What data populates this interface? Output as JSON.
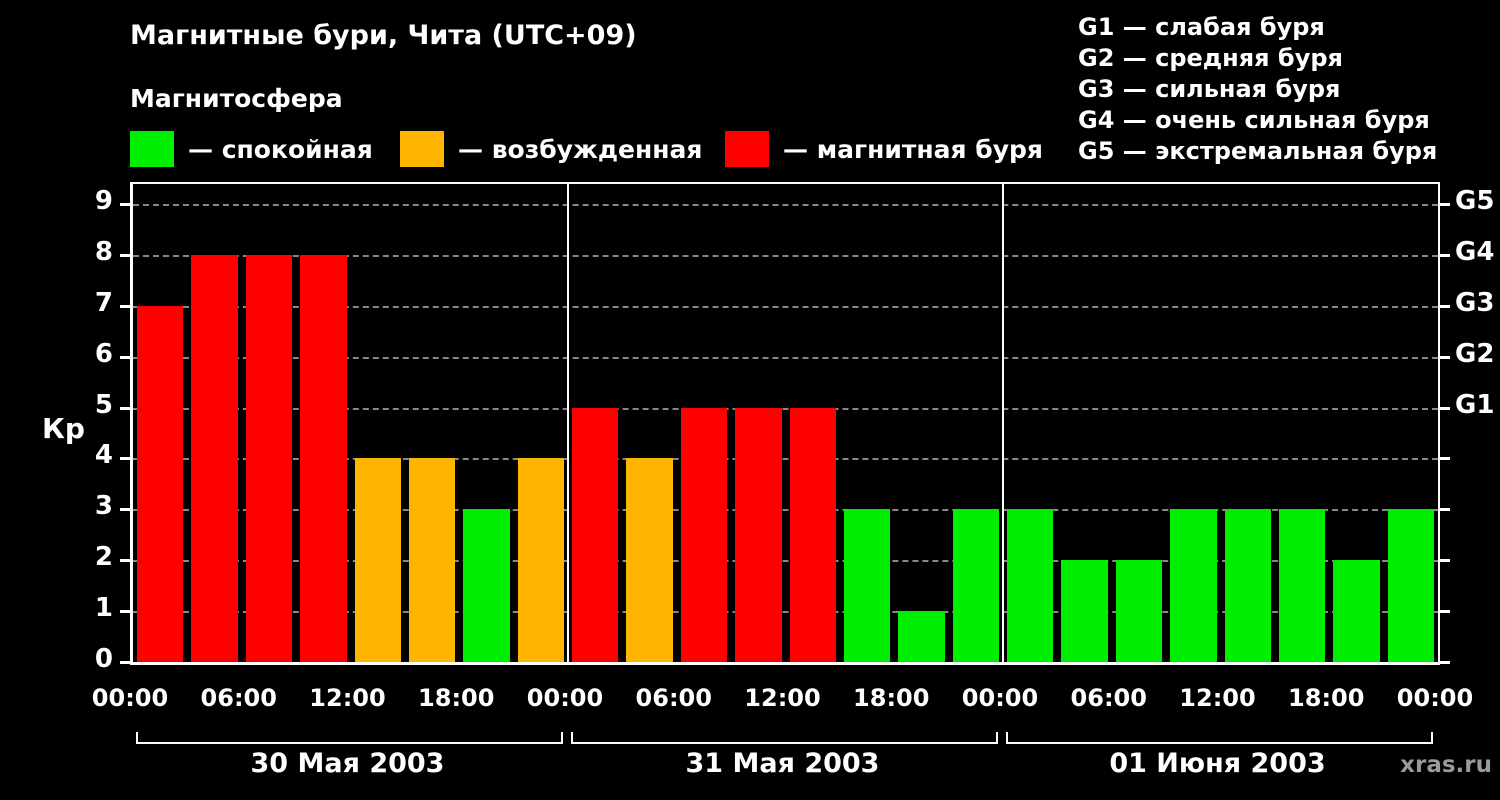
{
  "title": "Магнитные бури, Чита (UTC+09)",
  "subtitle": "Магнитосфера",
  "legend": [
    {
      "name": "quiet",
      "label": "— спокойная",
      "color": "#00ee00"
    },
    {
      "name": "excited",
      "label": "— возбужденная",
      "color": "#ffb400"
    },
    {
      "name": "storm",
      "label": "— магнитная буря",
      "color": "#ff0000"
    }
  ],
  "g_legend": [
    "G1 — слабая буря",
    "G2 — средняя буря",
    "G3 — сильная буря",
    "G4 — очень сильная буря",
    "G5 — экстремальная буря"
  ],
  "watermark": "xras.ru",
  "chart_data": {
    "type": "bar",
    "title": "Магнитные бури, Чита (UTC+09)",
    "ylabel": "Кр",
    "ylim": [
      0,
      9
    ],
    "yticks": [
      0,
      1,
      2,
      3,
      4,
      5,
      6,
      7,
      8,
      9
    ],
    "right_ticks": [
      {
        "label": "G1",
        "value": 5
      },
      {
        "label": "G2",
        "value": 6
      },
      {
        "label": "G3",
        "value": 7
      },
      {
        "label": "G4",
        "value": 8
      },
      {
        "label": "G5",
        "value": 9
      }
    ],
    "x_tick_labels": [
      "00:00",
      "06:00",
      "12:00",
      "18:00",
      "00:00",
      "06:00",
      "12:00",
      "18:00",
      "00:00",
      "06:00",
      "12:00",
      "18:00",
      "00:00"
    ],
    "bar_interval_hours": 3,
    "days": [
      {
        "label": "30 Мая 2003",
        "values": [
          7,
          8,
          8,
          8,
          4,
          4,
          3,
          4
        ]
      },
      {
        "label": "31 Мая 2003",
        "values": [
          5,
          4,
          5,
          5,
          5,
          3,
          1,
          3
        ]
      },
      {
        "label": "01 Июня 2003",
        "values": [
          3,
          2,
          2,
          3,
          3,
          3,
          2,
          3
        ]
      }
    ],
    "colors": {
      "quiet": "#00ee00",
      "excited": "#ffb400",
      "storm": "#ff0000"
    },
    "color_rule": "Kp<=3 quiet(green), Kp==4 excited(orange), Kp>=5 storm(red)",
    "grid": "dashed horizontal at each integer 1-9",
    "legend_position": "top"
  }
}
